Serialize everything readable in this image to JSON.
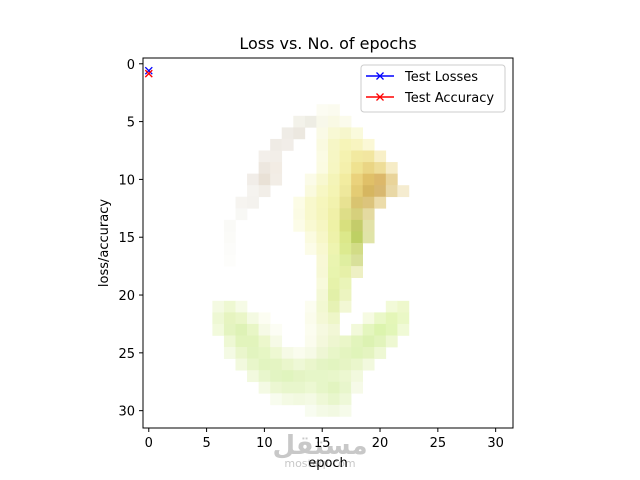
{
  "chart_data": {
    "type": "heatmap",
    "title": "Loss vs. No. of epochs",
    "xlabel": "epoch",
    "ylabel": "loss/accuracy",
    "xlim": [
      -0.5,
      31.5
    ],
    "ylim": [
      31.5,
      -0.5
    ],
    "xticks": [
      0,
      5,
      10,
      15,
      20,
      25,
      30
    ],
    "yticks": [
      0,
      5,
      10,
      15,
      20,
      25,
      30
    ],
    "legend_position": "top-right",
    "grid": false,
    "series": [
      {
        "name": "Test Losses",
        "color": "#0000ff",
        "marker": "x",
        "x": [
          0
        ],
        "y": [
          0.6
        ]
      },
      {
        "name": "Test Accuracy",
        "color": "#ff0000",
        "marker": "x",
        "x": [
          0
        ],
        "y": [
          0.85
        ]
      }
    ],
    "background_image": {
      "grid_size": 32,
      "cells": [
        [
          15,
          4,
          "#fcfcf2"
        ],
        [
          16,
          4,
          "#fbfbef"
        ],
        [
          13,
          5,
          "#f3f2ea"
        ],
        [
          14,
          5,
          "#eeede4"
        ],
        [
          15,
          5,
          "#f8f8ea"
        ],
        [
          16,
          5,
          "#f9f9e4"
        ],
        [
          17,
          5,
          "#fbfbec"
        ],
        [
          12,
          6,
          "#efece6"
        ],
        [
          13,
          6,
          "#ece8e0"
        ],
        [
          15,
          6,
          "#fafae6"
        ],
        [
          16,
          6,
          "#f8f8d4"
        ],
        [
          17,
          6,
          "#f6f6cc"
        ],
        [
          18,
          6,
          "#fafadc"
        ],
        [
          11,
          7,
          "#efebe5"
        ],
        [
          12,
          7,
          "#f1ede8"
        ],
        [
          15,
          7,
          "#fafae0"
        ],
        [
          16,
          7,
          "#f6f6c6"
        ],
        [
          17,
          7,
          "#f6f4b8"
        ],
        [
          18,
          7,
          "#f8f4c0"
        ],
        [
          19,
          7,
          "#fbf8d6"
        ],
        [
          10,
          8,
          "#f3efea"
        ],
        [
          11,
          8,
          "#f2eee8"
        ],
        [
          15,
          8,
          "#fbfbe4"
        ],
        [
          16,
          8,
          "#f6f6c4"
        ],
        [
          17,
          8,
          "#f5f2b0"
        ],
        [
          18,
          8,
          "#f2e9a0"
        ],
        [
          19,
          8,
          "#f2e6a0"
        ],
        [
          20,
          8,
          "#f8f0c8"
        ],
        [
          10,
          9,
          "#ede7df"
        ],
        [
          11,
          9,
          "#f2ece4"
        ],
        [
          15,
          9,
          "#fbfbe2"
        ],
        [
          16,
          9,
          "#f6f6c2"
        ],
        [
          17,
          9,
          "#f4f0ac"
        ],
        [
          18,
          9,
          "#efe290"
        ],
        [
          19,
          9,
          "#ead584"
        ],
        [
          20,
          9,
          "#eedd98"
        ],
        [
          21,
          9,
          "#f6ecc6"
        ],
        [
          9,
          10,
          "#f1ede8"
        ],
        [
          10,
          10,
          "#e9e1d6"
        ],
        [
          11,
          10,
          "#f2ede6"
        ],
        [
          14,
          10,
          "#fbfbe8"
        ],
        [
          15,
          10,
          "#f8f8d0"
        ],
        [
          16,
          10,
          "#f4f4b8"
        ],
        [
          17,
          10,
          "#f2eca0"
        ],
        [
          18,
          10,
          "#ead27c"
        ],
        [
          19,
          10,
          "#e0c068"
        ],
        [
          20,
          10,
          "#dcb86a"
        ],
        [
          21,
          10,
          "#e9d49a"
        ],
        [
          9,
          11,
          "#f5f3ef"
        ],
        [
          10,
          11,
          "#f2eee8"
        ],
        [
          14,
          11,
          "#fafade"
        ],
        [
          15,
          11,
          "#f7f7c4"
        ],
        [
          16,
          11,
          "#f4f4b4"
        ],
        [
          17,
          11,
          "#eee89c"
        ],
        [
          18,
          11,
          "#e4cc74"
        ],
        [
          19,
          11,
          "#d6b660"
        ],
        [
          20,
          11,
          "#d8b870"
        ],
        [
          21,
          11,
          "#e9d8a6"
        ],
        [
          22,
          11,
          "#f5ecd0"
        ],
        [
          8,
          12,
          "#f6f4f0"
        ],
        [
          9,
          12,
          "#f4f2ee"
        ],
        [
          13,
          12,
          "#fcfce6"
        ],
        [
          14,
          12,
          "#f8f8cc"
        ],
        [
          15,
          12,
          "#f6f6bc"
        ],
        [
          16,
          12,
          "#f2f2ae"
        ],
        [
          17,
          12,
          "#e8e292"
        ],
        [
          18,
          12,
          "#d9c470"
        ],
        [
          19,
          12,
          "#dcc47c"
        ],
        [
          20,
          12,
          "#ecdcaa"
        ],
        [
          8,
          13,
          "#f8f8f5"
        ],
        [
          13,
          13,
          "#fbfbe4"
        ],
        [
          14,
          13,
          "#f8f8cc"
        ],
        [
          15,
          13,
          "#f5f5bc"
        ],
        [
          16,
          13,
          "#f0f0a8"
        ],
        [
          17,
          13,
          "#dede88"
        ],
        [
          18,
          13,
          "#d6d07c"
        ],
        [
          19,
          13,
          "#e4daa0"
        ],
        [
          7,
          14,
          "#fafaf7"
        ],
        [
          13,
          14,
          "#fcfce8"
        ],
        [
          14,
          14,
          "#f9f9d2"
        ],
        [
          15,
          14,
          "#f6f6c2"
        ],
        [
          16,
          14,
          "#eef2a6"
        ],
        [
          17,
          14,
          "#d8e07e"
        ],
        [
          18,
          14,
          "#c4cc6a"
        ],
        [
          19,
          14,
          "#e2e2a8"
        ],
        [
          7,
          15,
          "#fbfbf8"
        ],
        [
          14,
          15,
          "#fbfbe0"
        ],
        [
          15,
          15,
          "#f7f7c8"
        ],
        [
          16,
          15,
          "#eef2aa"
        ],
        [
          17,
          15,
          "#dce88a"
        ],
        [
          18,
          15,
          "#bed064"
        ],
        [
          19,
          15,
          "#e0e4a8"
        ],
        [
          7,
          16,
          "#fcfcfa"
        ],
        [
          14,
          16,
          "#fcfce8"
        ],
        [
          15,
          16,
          "#f8f8d0"
        ],
        [
          16,
          16,
          "#eef4b0"
        ],
        [
          17,
          16,
          "#dcea90"
        ],
        [
          18,
          16,
          "#d2dc86"
        ],
        [
          7,
          17,
          "#fdfdfb"
        ],
        [
          15,
          17,
          "#f8f8d6"
        ],
        [
          16,
          17,
          "#eaf4b0"
        ],
        [
          17,
          17,
          "#dfeea0"
        ],
        [
          18,
          17,
          "#d8e09a"
        ],
        [
          15,
          18,
          "#f7f8d6"
        ],
        [
          16,
          18,
          "#e8f4ae"
        ],
        [
          17,
          18,
          "#e6f0a8"
        ],
        [
          18,
          18,
          "#eef0c4"
        ],
        [
          15,
          19,
          "#f8fadc"
        ],
        [
          16,
          19,
          "#e6f2aa"
        ],
        [
          17,
          19,
          "#eaf4b8"
        ],
        [
          15,
          20,
          "#f4f8d6"
        ],
        [
          16,
          20,
          "#e2f0a8"
        ],
        [
          17,
          20,
          "#ecf4c0"
        ],
        [
          6,
          21,
          "#f4fae2"
        ],
        [
          7,
          21,
          "#eef8d2"
        ],
        [
          8,
          21,
          "#f6fbe6"
        ],
        [
          14,
          21,
          "#fcfdf0"
        ],
        [
          15,
          21,
          "#f2f8d2"
        ],
        [
          16,
          21,
          "#e6f2b4"
        ],
        [
          17,
          21,
          "#f2f7d4"
        ],
        [
          21,
          21,
          "#f2fad8"
        ],
        [
          22,
          21,
          "#eef8cc"
        ],
        [
          6,
          22,
          "#eef8d4"
        ],
        [
          7,
          22,
          "#e6f4c0"
        ],
        [
          8,
          22,
          "#eaf6c8"
        ],
        [
          9,
          22,
          "#f4fae2"
        ],
        [
          10,
          22,
          "#fcfdf2"
        ],
        [
          14,
          22,
          "#fbfcec"
        ],
        [
          15,
          22,
          "#f4f8d6"
        ],
        [
          16,
          22,
          "#eef6c8"
        ],
        [
          19,
          22,
          "#f6fbe2"
        ],
        [
          20,
          22,
          "#eaf8c8"
        ],
        [
          21,
          22,
          "#e4f6b8"
        ],
        [
          22,
          22,
          "#eaf8c6"
        ],
        [
          6,
          23,
          "#f2fadc"
        ],
        [
          7,
          23,
          "#e4f4c0"
        ],
        [
          8,
          23,
          "#deF2b6"
        ],
        [
          9,
          23,
          "#e8f6c6"
        ],
        [
          10,
          23,
          "#f6fae6"
        ],
        [
          11,
          23,
          "#fcfdf4"
        ],
        [
          14,
          23,
          "#fcfdf0"
        ],
        [
          15,
          23,
          "#f6f9e0"
        ],
        [
          16,
          23,
          "#f2f7d6"
        ],
        [
          18,
          23,
          "#f2f9da"
        ],
        [
          19,
          23,
          "#e4f6be"
        ],
        [
          20,
          23,
          "#dcf4ae"
        ],
        [
          21,
          23,
          "#e2f6b8"
        ],
        [
          22,
          23,
          "#f0fad6"
        ],
        [
          7,
          24,
          "#eef8d4"
        ],
        [
          8,
          24,
          "#e2f4bc"
        ],
        [
          9,
          24,
          "#e2f4bc"
        ],
        [
          10,
          24,
          "#ecf7cc"
        ],
        [
          11,
          24,
          "#f6fae6"
        ],
        [
          14,
          24,
          "#fbfcee"
        ],
        [
          15,
          24,
          "#f4f8dc"
        ],
        [
          16,
          24,
          "#eef6d0"
        ],
        [
          17,
          24,
          "#eaf6c8"
        ],
        [
          18,
          24,
          "#e2f4bc"
        ],
        [
          19,
          24,
          "#dcf2b2"
        ],
        [
          20,
          24,
          "#e2f4bc"
        ],
        [
          21,
          24,
          "#eef8d2"
        ],
        [
          7,
          25,
          "#f4fae4"
        ],
        [
          8,
          25,
          "#eaf6cc"
        ],
        [
          9,
          25,
          "#e2f4bf"
        ],
        [
          10,
          25,
          "#e6f6c4"
        ],
        [
          11,
          25,
          "#eef8d2"
        ],
        [
          12,
          25,
          "#f6fae6"
        ],
        [
          13,
          25,
          "#fafcee"
        ],
        [
          14,
          25,
          "#f6fae6"
        ],
        [
          15,
          25,
          "#eef6d4"
        ],
        [
          16,
          25,
          "#e8f6c8"
        ],
        [
          17,
          25,
          "#e4f4c0"
        ],
        [
          18,
          25,
          "#e0f4ba"
        ],
        [
          19,
          25,
          "#e4f4c0"
        ],
        [
          20,
          25,
          "#eef8d4"
        ],
        [
          8,
          26,
          "#f2f9de"
        ],
        [
          9,
          26,
          "#e8f6ca"
        ],
        [
          10,
          26,
          "#e2f4c0"
        ],
        [
          11,
          26,
          "#e4f4c2"
        ],
        [
          12,
          26,
          "#eaf6cc"
        ],
        [
          13,
          26,
          "#eef8d6"
        ],
        [
          14,
          26,
          "#eaf6cc"
        ],
        [
          15,
          26,
          "#e4f4c4"
        ],
        [
          16,
          26,
          "#e2f4c0"
        ],
        [
          17,
          26,
          "#e6f4c4"
        ],
        [
          18,
          26,
          "#eaf6cc"
        ],
        [
          19,
          26,
          "#f2f9de"
        ],
        [
          9,
          27,
          "#f2f9de"
        ],
        [
          10,
          27,
          "#e8f6cc"
        ],
        [
          11,
          27,
          "#e2f4c2"
        ],
        [
          12,
          27,
          "#e0f4be"
        ],
        [
          13,
          27,
          "#e4f4c4"
        ],
        [
          14,
          27,
          "#e6f6c8"
        ],
        [
          15,
          27,
          "#e6f6c8"
        ],
        [
          16,
          27,
          "#e8f6ca"
        ],
        [
          17,
          27,
          "#ecf7d0"
        ],
        [
          18,
          27,
          "#f2f9de"
        ],
        [
          10,
          28,
          "#f4fae4"
        ],
        [
          11,
          28,
          "#ecf7d2"
        ],
        [
          12,
          28,
          "#e8f6cc"
        ],
        [
          13,
          28,
          "#e8f6cc"
        ],
        [
          14,
          28,
          "#ecf8d2"
        ],
        [
          15,
          28,
          "#e6f6c8"
        ],
        [
          16,
          28,
          "#e2f4c0"
        ],
        [
          17,
          28,
          "#e8f6cc"
        ],
        [
          18,
          28,
          "#f6fae8"
        ],
        [
          11,
          29,
          "#f8fcee"
        ],
        [
          12,
          29,
          "#f4fae4"
        ],
        [
          13,
          29,
          "#f2f9e0"
        ],
        [
          14,
          29,
          "#f4fae4"
        ],
        [
          15,
          29,
          "#eef8d6"
        ],
        [
          16,
          29,
          "#e8f6cc"
        ],
        [
          17,
          29,
          "#eef8d8"
        ],
        [
          14,
          30,
          "#f8fcf0"
        ],
        [
          15,
          30,
          "#f4fae6"
        ],
        [
          16,
          30,
          "#f2f9e2"
        ],
        [
          17,
          30,
          "#f6fbea"
        ]
      ]
    }
  },
  "watermark": {
    "text_ar": "مستقل",
    "text_latin": "mostaql.com"
  }
}
